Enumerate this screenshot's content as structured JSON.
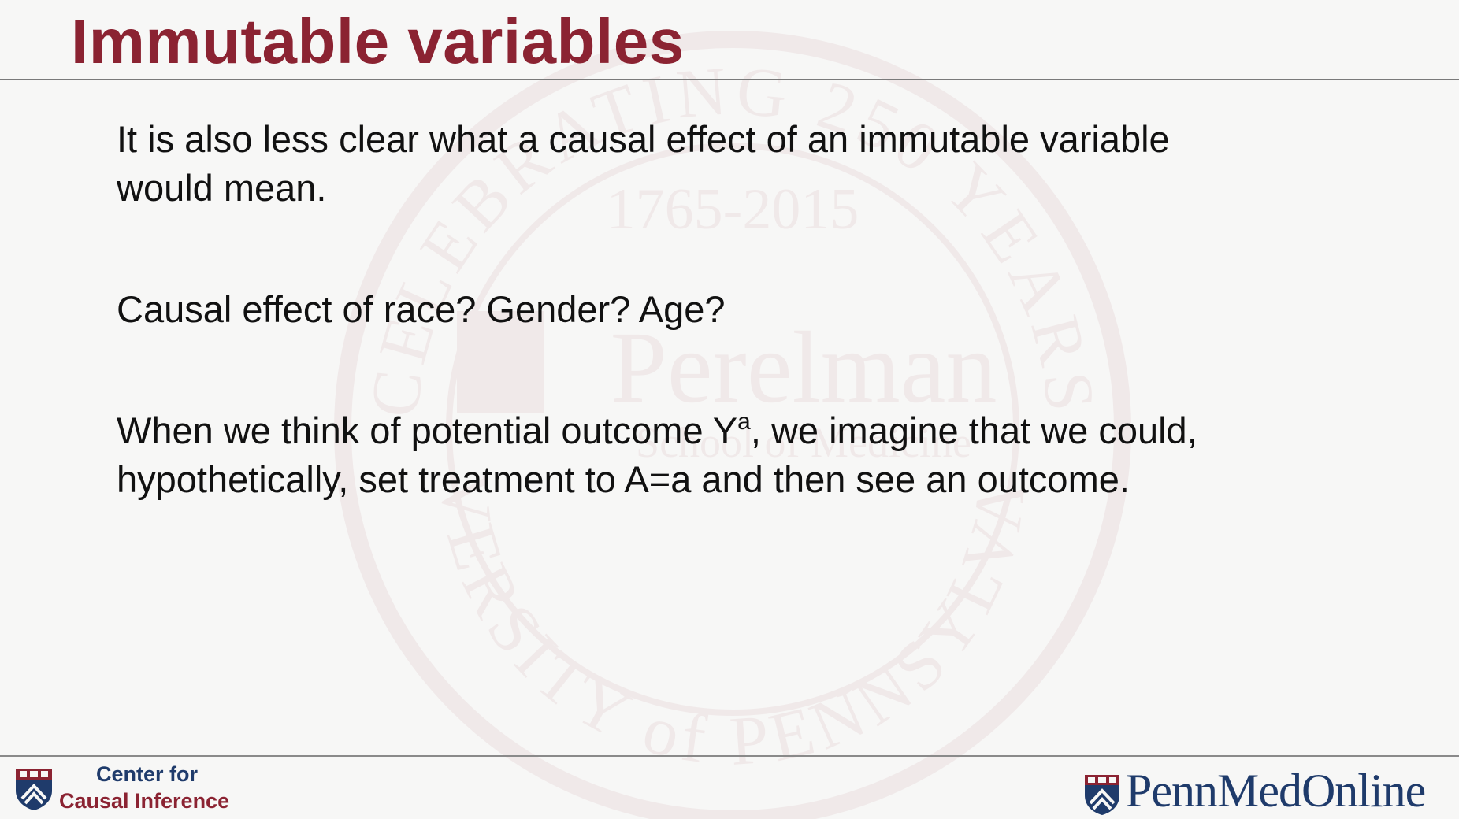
{
  "slide": {
    "title": "Immutable variables",
    "paragraphs": {
      "p1": "It is also less clear what a causal effect of an immutable variable would mean.",
      "p1_line1": "It is also less clear what a causal effect of an immutable variable",
      "p1_line2": "would mean.",
      "p2": "Causal effect of race? Gender? Age?",
      "p3_line1_before": "When we think of potential outcome Y",
      "p3_sup": "a",
      "p3_line1_after": ", we imagine that we could,",
      "p3_line2": "hypothetically, set treatment to A=a and then see an outcome."
    }
  },
  "footer": {
    "left_line1": "Center for",
    "left_line2": "Causal Inference",
    "right_logo_text": "PennMedOnline"
  },
  "watermark": {
    "ring_text_top": "CELEBRATING 250 YEARS",
    "years": "1765-2015",
    "name": "Perelman",
    "school": "School of Medicine",
    "ring_text_bottom": "UNIVERSITY of PENNSYLVANIA"
  },
  "colors": {
    "title": "#8b2332",
    "navy": "#1f3b6b",
    "text": "#111111",
    "background": "#f7f7f6"
  }
}
